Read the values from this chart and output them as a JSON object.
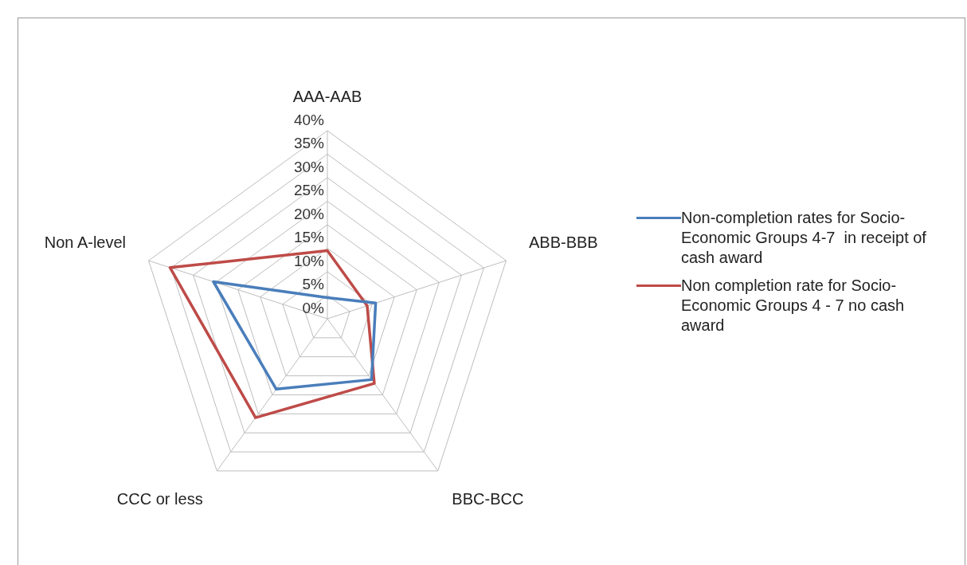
{
  "chart_data": {
    "type": "radar",
    "categories": [
      "AAA-AAB",
      "ABB-BBB",
      "BBC-BCC",
      "CCC or less",
      "Non A-level"
    ],
    "series": [
      {
        "name": "Non-completion rates for Socio-Economic Groups 4-7  in receipt of cash award",
        "color": "#4a7ebb",
        "values": [
          4.5,
          10.8,
          16,
          18.5,
          25.5
        ]
      },
      {
        "name": "Non completion rate for Socio-Economic Groups 4 - 7 no cash award",
        "color": "#be4b48",
        "values": [
          14.5,
          8.9,
          17,
          26,
          35.2
        ]
      }
    ],
    "ylim": [
      0,
      40
    ],
    "yticks": [
      {
        "value": 0,
        "label": "0%"
      },
      {
        "value": 5,
        "label": "5%"
      },
      {
        "value": 10,
        "label": "10%"
      },
      {
        "value": 15,
        "label": "15%"
      },
      {
        "value": 20,
        "label": "20%"
      },
      {
        "value": 25,
        "label": "25%"
      },
      {
        "value": 30,
        "label": "30%"
      },
      {
        "value": 35,
        "label": "35%"
      },
      {
        "value": 40,
        "label": "40%"
      }
    ],
    "grid": true,
    "legend": "right",
    "marker": "none",
    "line_style": "solid"
  }
}
